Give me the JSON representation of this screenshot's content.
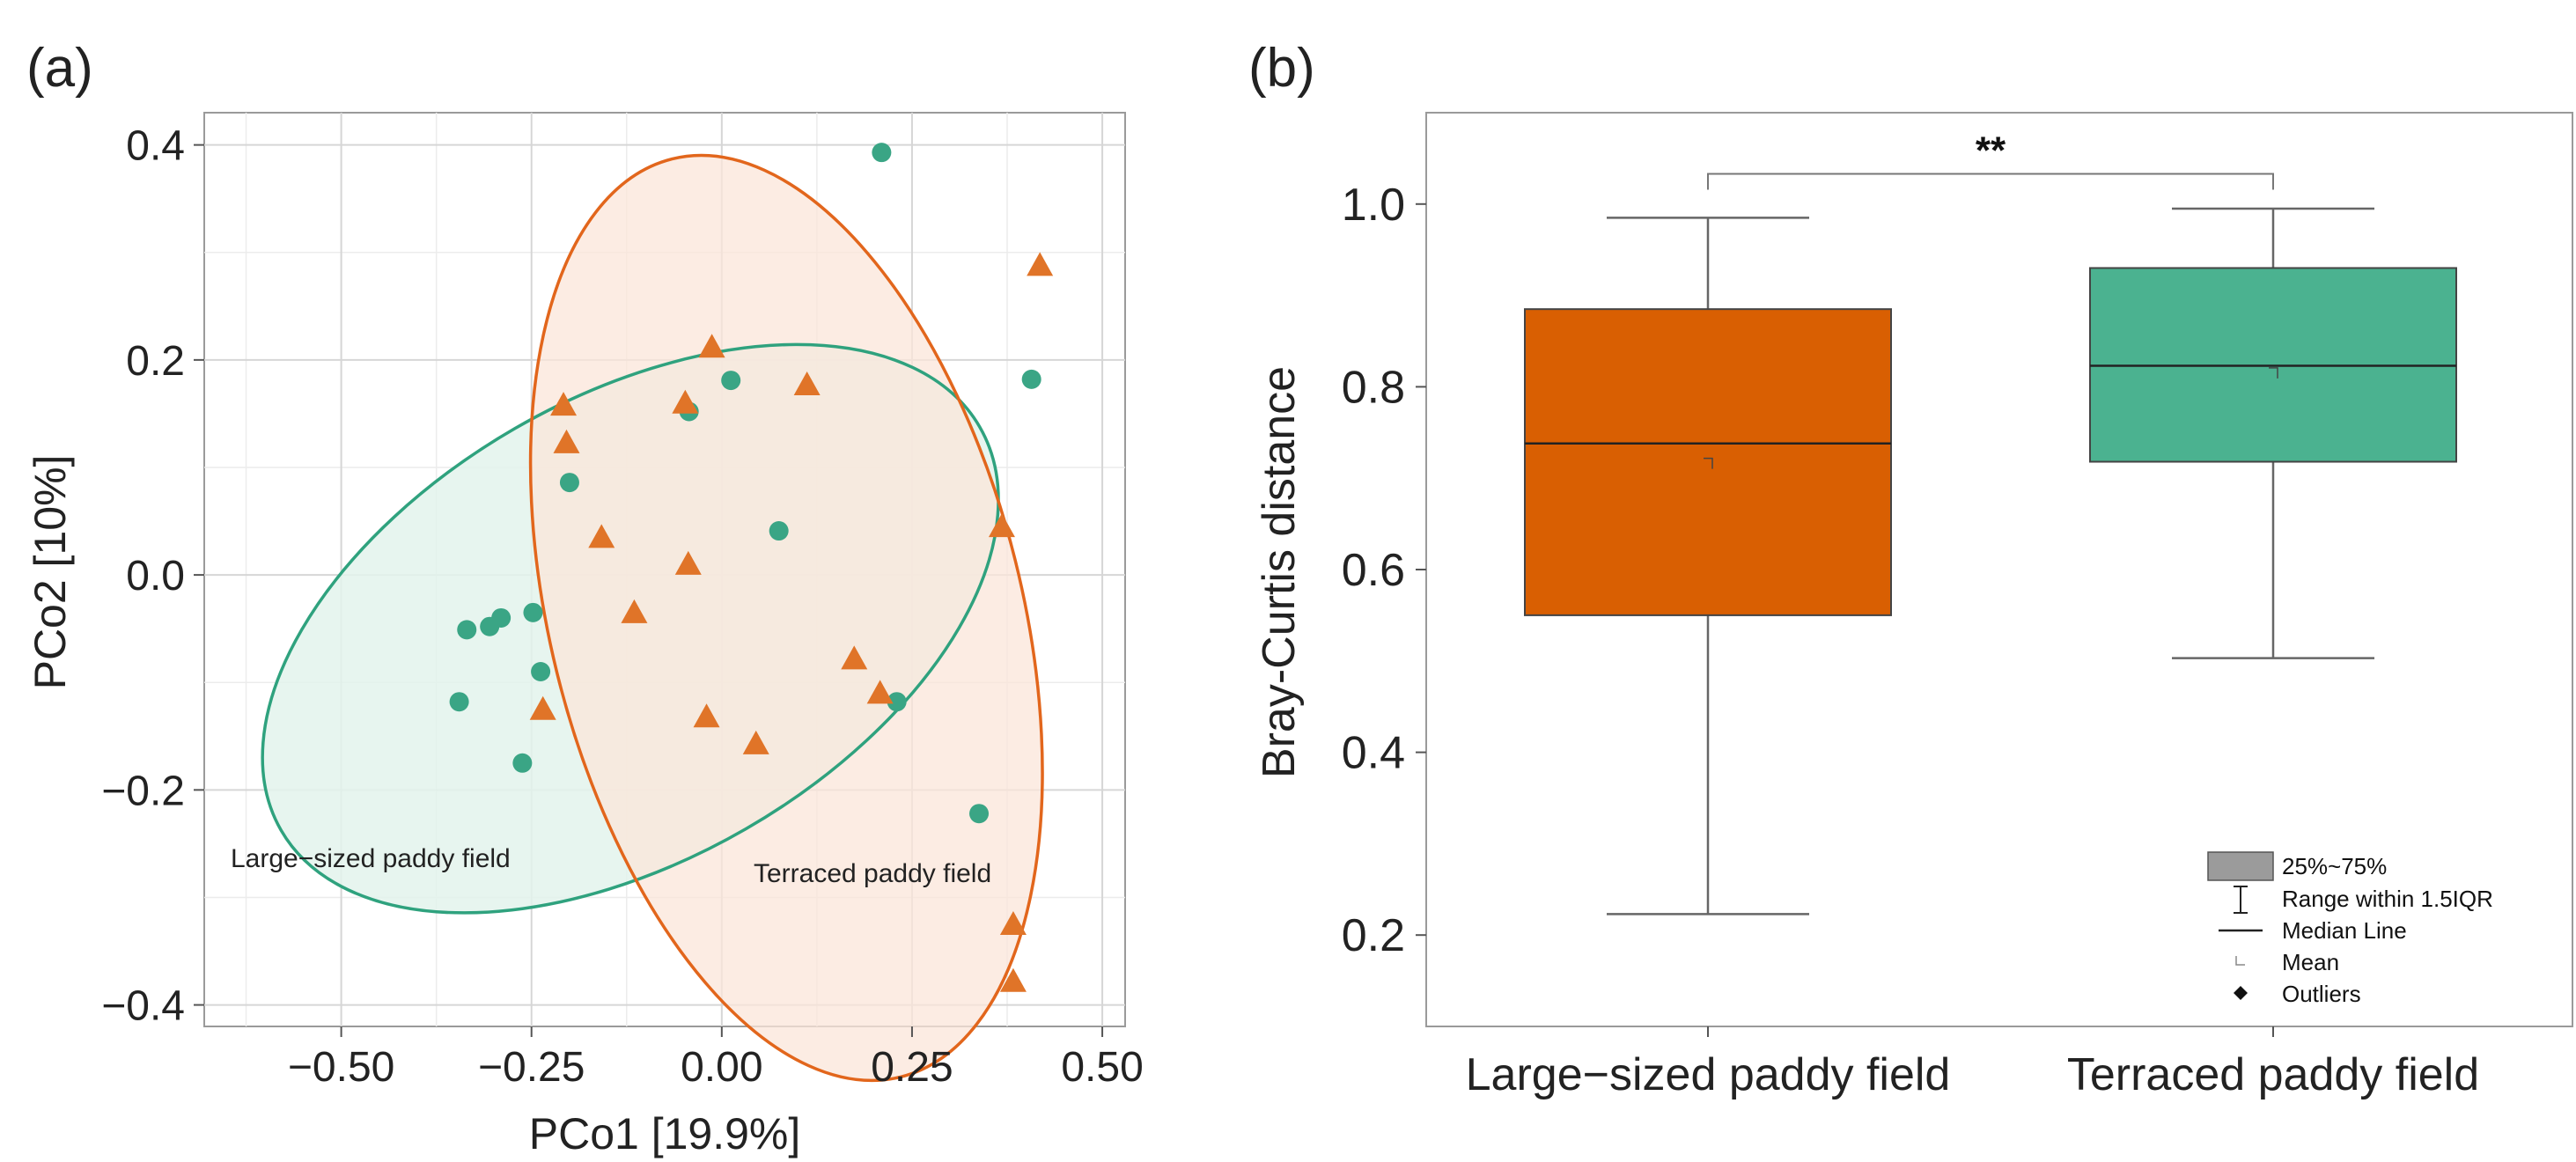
{
  "figure": {
    "panel_a_label": "(a)",
    "panel_b_label": "(b)"
  },
  "colors": {
    "large": "#3aa585",
    "terraced": "#e07428",
    "large_ellipse_fill": "#e3f3ec",
    "terraced_ellipse_fill": "#fbe6d9",
    "large_ellipse_stroke": "#2fa27e",
    "terraced_ellipse_stroke": "#e2661c",
    "box_large": "#d95f02",
    "box_terraced": "#4bb290",
    "grid": "#d6d6d6",
    "axis": "#333333"
  },
  "chart_data": [
    {
      "type": "scatter",
      "panel": "(a)",
      "title": "",
      "xlabel": "PCo1 [19.9%]",
      "ylabel": "PCo2 [10%]",
      "xlim": [
        -0.68,
        0.53
      ],
      "ylim": [
        -0.42,
        0.43
      ],
      "xticks": [
        -0.5,
        -0.25,
        0.0,
        0.25,
        0.5
      ],
      "xtick_labels": [
        "−0.50",
        "−0.25",
        "0.00",
        "0.25",
        "0.50"
      ],
      "yticks": [
        -0.4,
        -0.2,
        0.0,
        0.2,
        0.4
      ],
      "ytick_labels": [
        "−0.4",
        "−0.2",
        "0.0",
        "0.2",
        "0.4"
      ],
      "grid": true,
      "series": [
        {
          "name": "Large-sized paddy field",
          "marker": "circle",
          "color_key": "large",
          "points": [
            [
              0.21,
              0.393
            ],
            [
              0.407,
              0.182
            ],
            [
              0.012,
              0.181
            ],
            [
              -0.043,
              0.152
            ],
            [
              -0.2,
              0.086
            ],
            [
              0.075,
              0.041
            ],
            [
              -0.335,
              -0.051
            ],
            [
              -0.305,
              -0.048
            ],
            [
              -0.29,
              -0.04
            ],
            [
              -0.248,
              -0.035
            ],
            [
              -0.238,
              -0.09
            ],
            [
              -0.345,
              -0.118
            ],
            [
              0.23,
              -0.118
            ],
            [
              -0.262,
              -0.175
            ],
            [
              0.338,
              -0.222
            ]
          ]
        },
        {
          "name": "Terraced paddy field",
          "marker": "triangle",
          "color_key": "terraced",
          "points": [
            [
              0.418,
              0.288
            ],
            [
              -0.013,
              0.212
            ],
            [
              0.112,
              0.177
            ],
            [
              -0.208,
              0.158
            ],
            [
              -0.048,
              0.16
            ],
            [
              -0.204,
              0.123
            ],
            [
              -0.158,
              0.035
            ],
            [
              0.368,
              0.045
            ],
            [
              -0.044,
              0.01
            ],
            [
              -0.115,
              -0.035
            ],
            [
              0.174,
              -0.078
            ],
            [
              0.208,
              -0.11
            ],
            [
              -0.235,
              -0.125
            ],
            [
              -0.02,
              -0.132
            ],
            [
              0.045,
              -0.157
            ],
            [
              0.383,
              -0.325
            ],
            [
              0.383,
              -0.378
            ]
          ]
        }
      ],
      "ellipses": [
        {
          "name": "Large-sized paddy field",
          "label": "Large−sized paddy field",
          "center": [
            -0.12,
            -0.05
          ],
          "semi_axes": [
            0.53,
            0.215
          ],
          "angle_deg": 30
        },
        {
          "name": "Terraced paddy field",
          "label": "Terraced paddy field",
          "center": [
            0.085,
            -0.04
          ],
          "semi_axes": [
            0.31,
            0.44
          ],
          "angle_deg": 14
        }
      ]
    },
    {
      "type": "box",
      "panel": "(b)",
      "title": "",
      "xlabel": "",
      "ylabel": "Bray-Curtis distance",
      "ylim": [
        0.1,
        1.1
      ],
      "yticks": [
        0.2,
        0.4,
        0.6,
        0.8,
        1.0
      ],
      "ytick_labels": [
        "0.2",
        "0.4",
        "0.6",
        "0.8",
        "1.0"
      ],
      "categories": [
        "Large−sized paddy field",
        "Terraced paddy field"
      ],
      "boxes": [
        {
          "name": "Large−sized paddy field",
          "color_key": "box_large",
          "min": 0.223,
          "q1": 0.55,
          "median": 0.738,
          "q3": 0.885,
          "max": 0.985,
          "mean": 0.716
        },
        {
          "name": "Terraced paddy field",
          "color_key": "box_terraced",
          "min": 0.503,
          "q1": 0.718,
          "median": 0.823,
          "q3": 0.93,
          "max": 0.995,
          "mean": 0.815
        }
      ],
      "significance": {
        "label": "**",
        "y": 1.033
      },
      "legend": {
        "position": "bottom-right",
        "entries": [
          "25%~75%",
          "Range within 1.5IQR",
          "Median Line",
          "Mean",
          "Outliers"
        ]
      }
    }
  ]
}
